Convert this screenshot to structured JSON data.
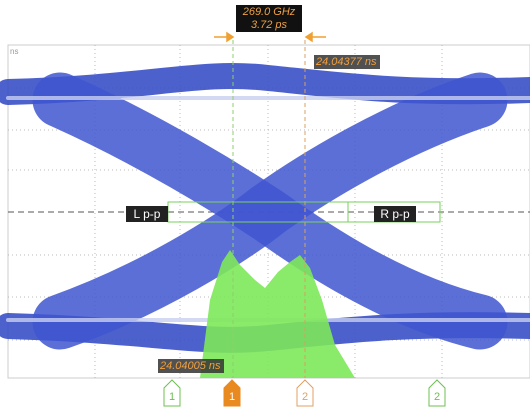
{
  "readout": {
    "frequency": "269.0 GHz",
    "period": "3.72 ps"
  },
  "cursors": {
    "upper_time": "24.04377 ns",
    "lower_time": "24.04005 ns"
  },
  "axis_unit": "ns",
  "measurement_labels": {
    "left": "L p-p",
    "right": "R p-p"
  },
  "markers": [
    {
      "label": "1"
    },
    {
      "label": "1"
    },
    {
      "label": "2"
    },
    {
      "label": "2"
    }
  ]
}
